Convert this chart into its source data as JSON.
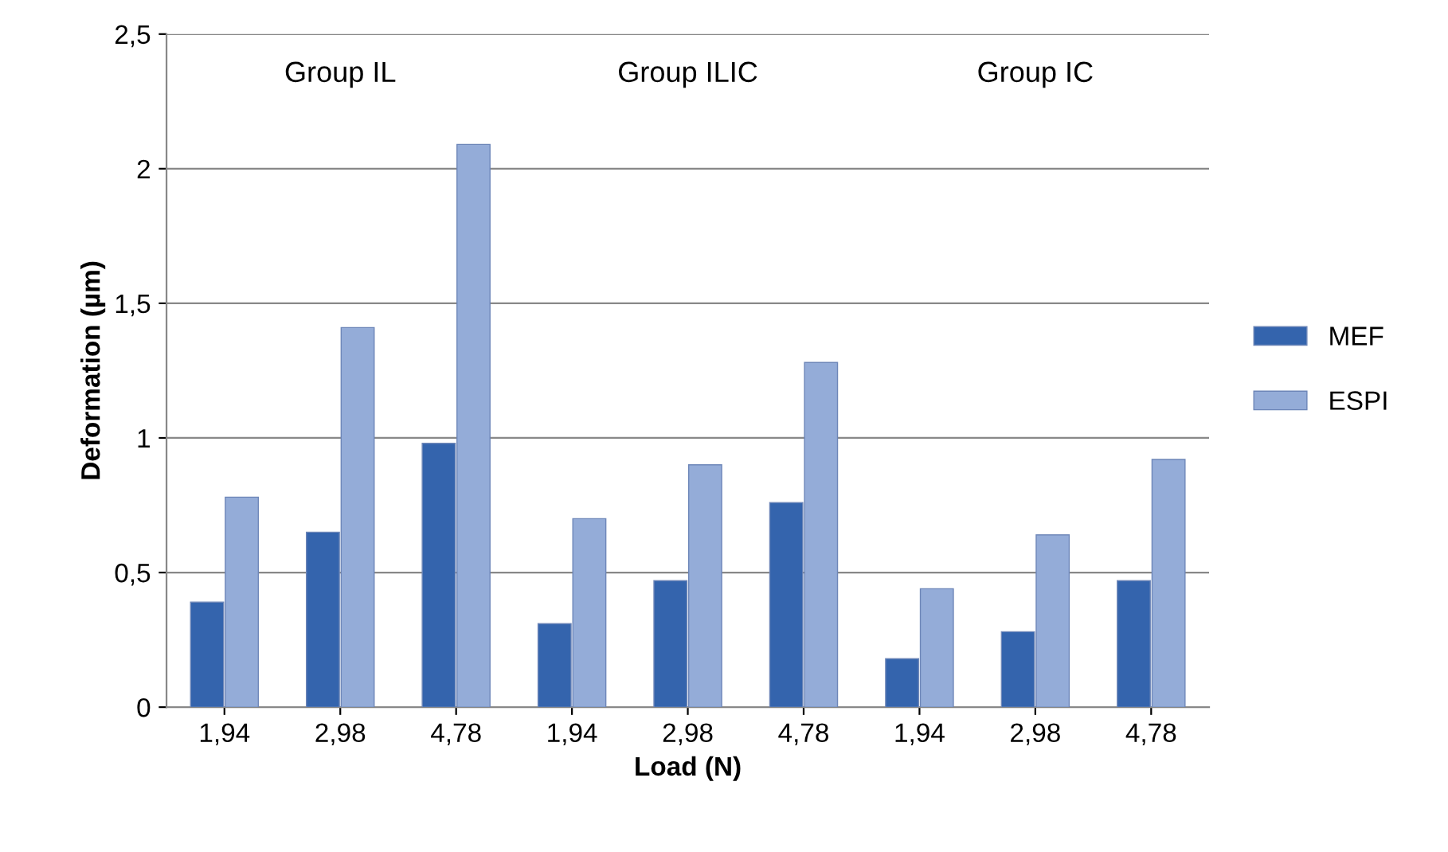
{
  "chart_data": {
    "type": "bar",
    "xlabel": "Load (N)",
    "ylabel": "Deformation (µm)",
    "categories": [
      "1,94",
      "2,98",
      "4,78",
      "1,94",
      "2,98",
      "4,78",
      "1,94",
      "2,98",
      "4,78"
    ],
    "series": [
      {
        "name": "MEF",
        "color": "#3464ad",
        "values": [
          0.39,
          0.65,
          0.98,
          0.31,
          0.47,
          0.76,
          0.18,
          0.28,
          0.47
        ]
      },
      {
        "name": "ESPI",
        "color": "#94acd8",
        "values": [
          0.78,
          1.41,
          2.09,
          0.7,
          0.9,
          1.28,
          0.44,
          0.64,
          0.92
        ]
      }
    ],
    "ylim": [
      0,
      2.5
    ],
    "yticks": [
      0,
      {
        "value": 0.5,
        "label": "0,5"
      },
      1,
      {
        "value": 1.5,
        "label": "1,5"
      },
      2,
      {
        "value": 2.5,
        "label": "2,5"
      }
    ],
    "annotations": [
      "Group IL",
      "Group ILIC",
      "Group IC"
    ],
    "grid": "y",
    "legend": "right"
  }
}
